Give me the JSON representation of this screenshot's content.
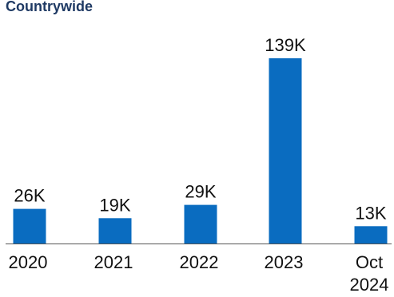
{
  "subtitle": "Countrywide",
  "colors": {
    "bar": "#0a6cc0",
    "axis": "#555555",
    "text": "#111111",
    "subtitle": "#1f3a64"
  },
  "chart_data": {
    "type": "bar",
    "subtitle": "Countrywide",
    "categories": [
      "2020",
      "2021",
      "2022",
      "2023",
      "Oct 2024"
    ],
    "category_lines": [
      [
        "2020"
      ],
      [
        "2021"
      ],
      [
        "2022"
      ],
      [
        "2023"
      ],
      [
        "Oct",
        "2024"
      ]
    ],
    "values": [
      26000,
      19000,
      29000,
      139000,
      13000
    ],
    "value_labels": [
      "26K",
      "19K",
      "29K",
      "139K",
      "13K"
    ],
    "ylim": [
      0,
      139000
    ],
    "grid": false,
    "legend": "none"
  }
}
